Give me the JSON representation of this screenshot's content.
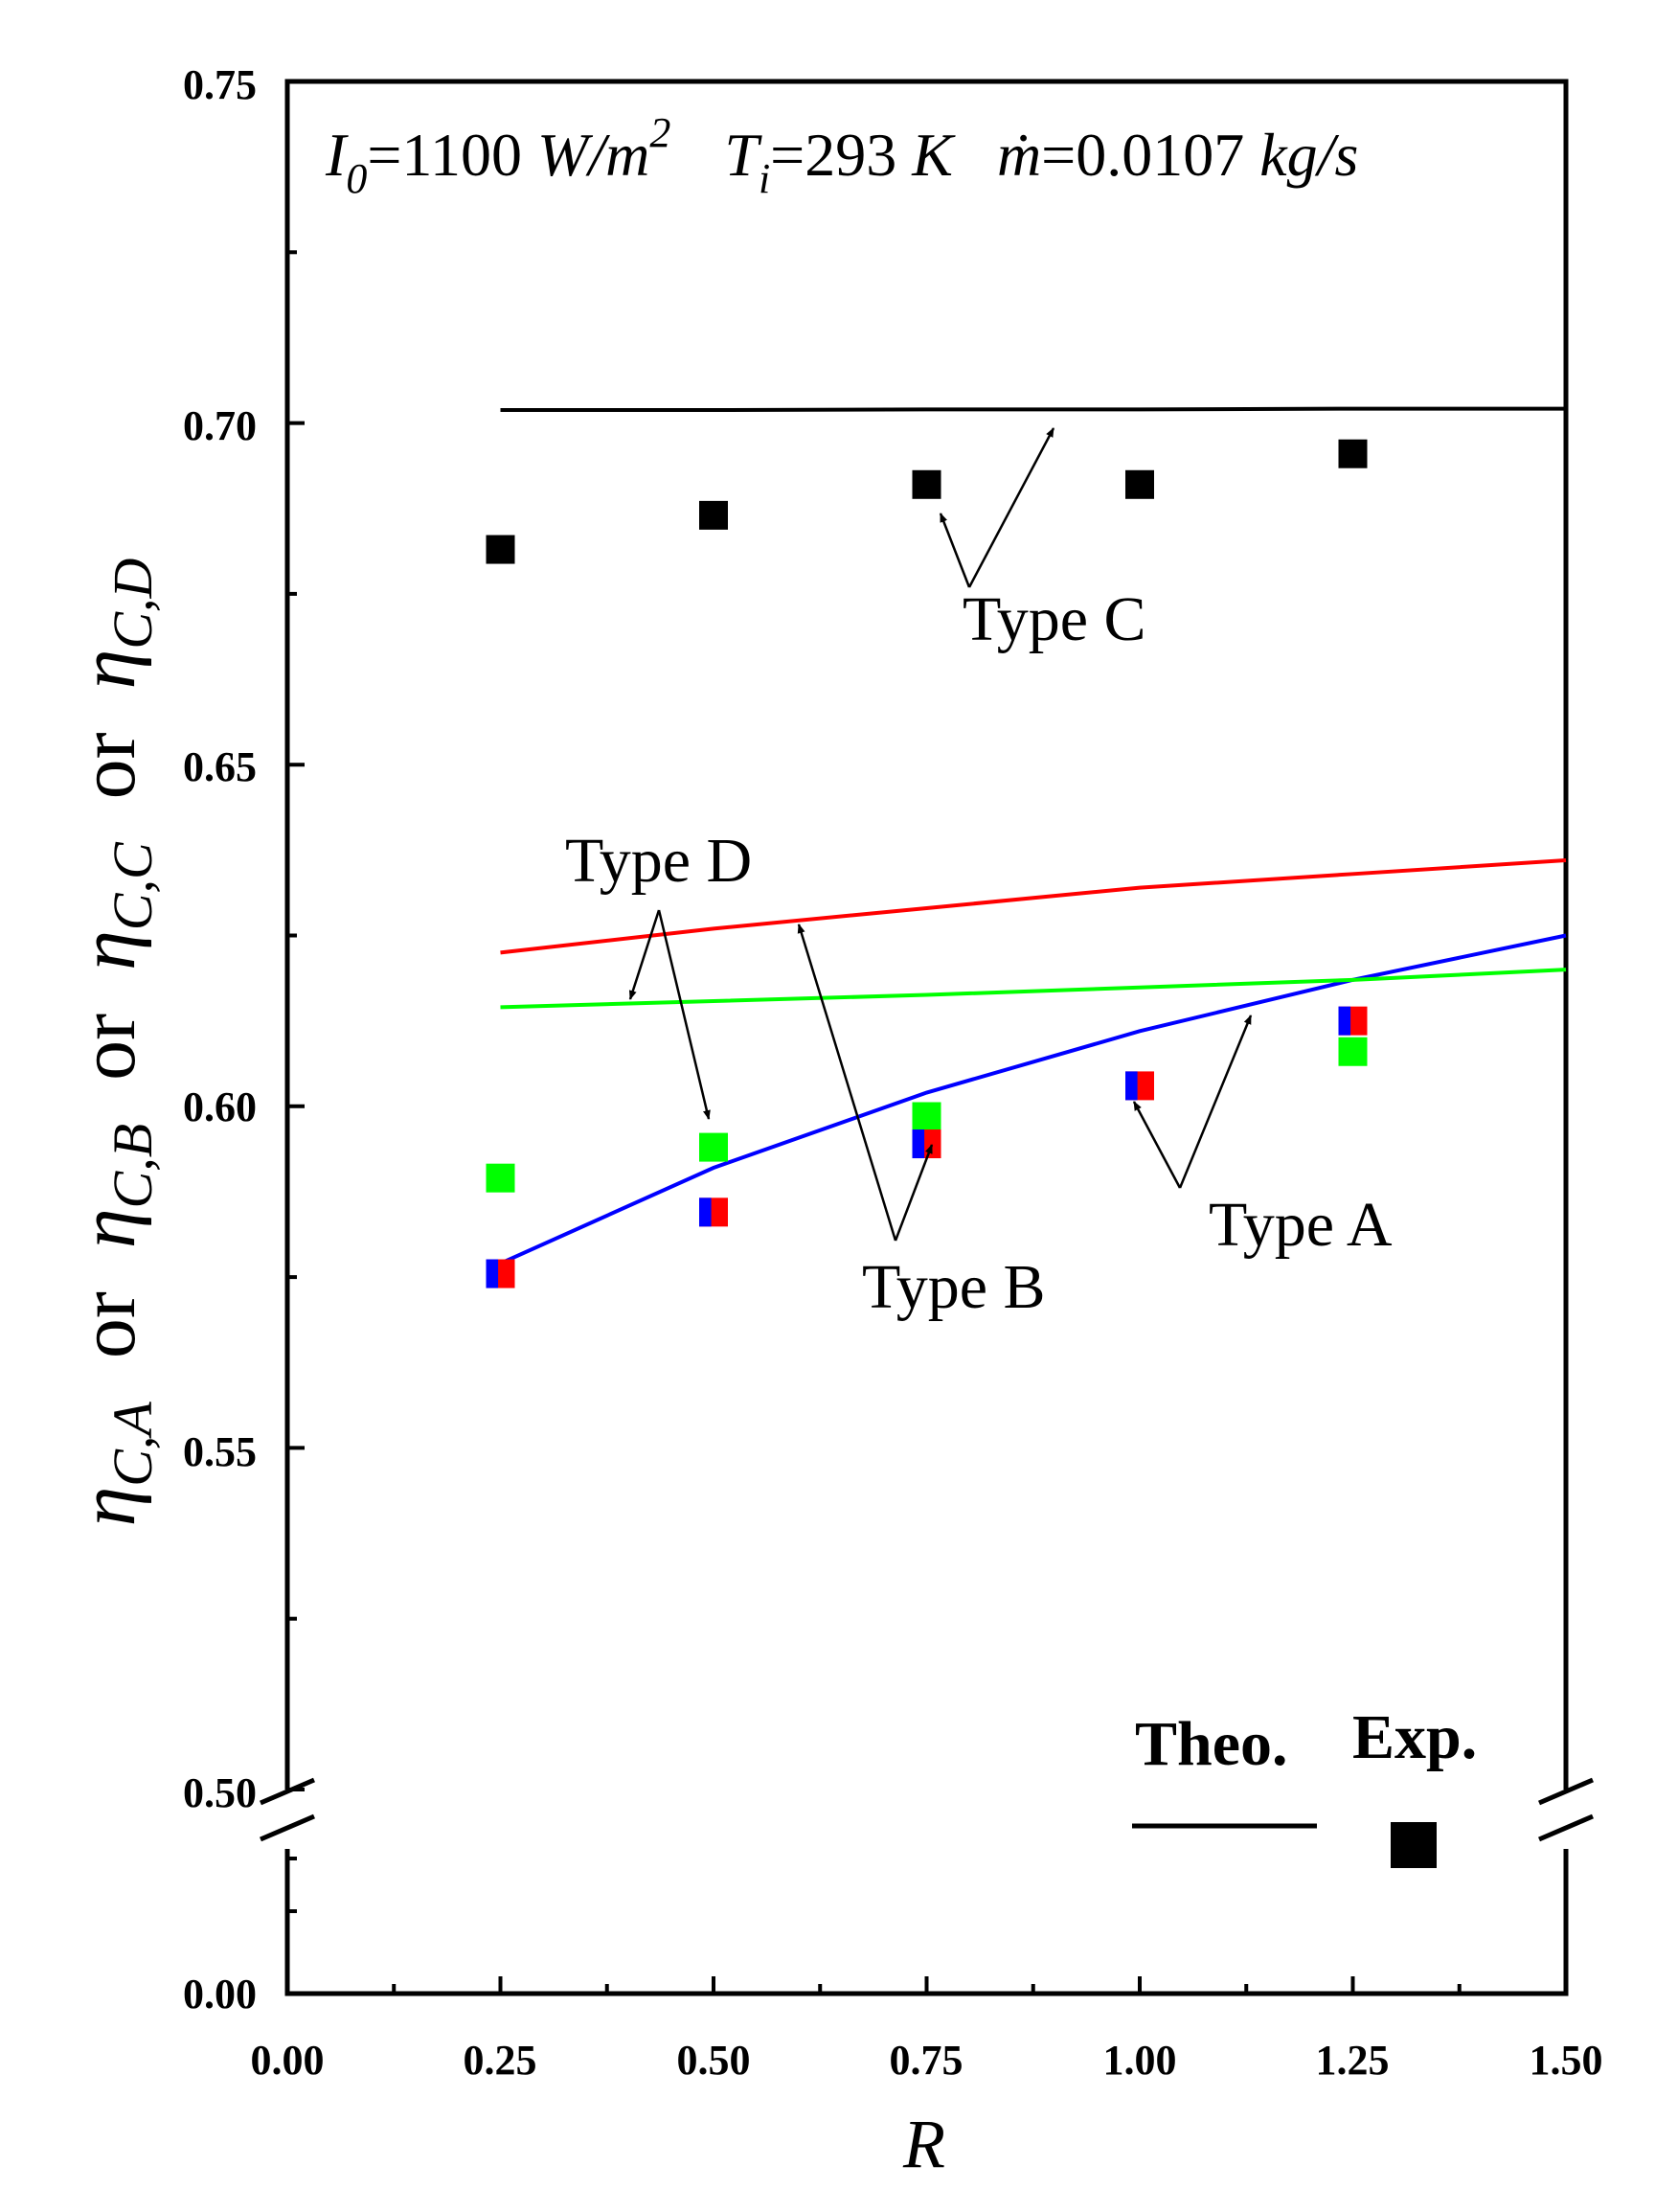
{
  "chart_data": {
    "type": "line+scatter",
    "xlabel": "R",
    "ylabel": {
      "eta": "η",
      "subs": [
        "C,A",
        "C,B",
        "C,C",
        "C,D"
      ],
      "joiner": "or"
    },
    "conditions": {
      "I0_sym": "I",
      "I0_sub": "0",
      "I0_val": "=1100 ",
      "I0_unit": "W/m",
      "I0_unit_sup": "2",
      "Ti_sym": "T",
      "Ti_sub": "i",
      "Ti_val": "=293 ",
      "Ti_unit": "K",
      "m_sym": "ṁ",
      "m_val": "=0.0107 ",
      "m_unit": "kg/s"
    },
    "x_ticks": [
      "0.00",
      "0.25",
      "0.50",
      "0.75",
      "1.00",
      "1.25",
      "1.50"
    ],
    "y_ticks_upper": [
      "0.50",
      "0.55",
      "0.60",
      "0.65",
      "0.70",
      "0.75"
    ],
    "y_tick_lower": "0.00",
    "xlim": [
      0,
      1.5
    ],
    "ylim_upper": [
      0.5,
      0.75
    ],
    "axis_break": "y-axis broken between 0.00 and 0.50",
    "theoretical": [
      {
        "name": "Type A",
        "color": "#0000ff",
        "x": [
          0.25,
          0.5,
          0.75,
          1.0,
          1.25,
          1.5
        ],
        "y": [
          0.577,
          0.591,
          0.602,
          0.611,
          0.6185,
          0.625
        ]
      },
      {
        "name": "Type B",
        "color": "#ff0000",
        "x": [
          0.25,
          0.5,
          0.75,
          1.0,
          1.25,
          1.5
        ],
        "y": [
          0.6225,
          0.626,
          0.629,
          0.632,
          0.634,
          0.636
        ]
      },
      {
        "name": "Type C",
        "color": "#000000",
        "x": [
          0.25,
          0.5,
          0.75,
          1.0,
          1.25,
          1.5
        ],
        "y": [
          0.7019,
          0.7019,
          0.702,
          0.702,
          0.7021,
          0.7021
        ]
      },
      {
        "name": "Type D",
        "color": "#00ff00",
        "x": [
          0.25,
          0.5,
          0.75,
          1.0,
          1.25,
          1.5
        ],
        "y": [
          0.6145,
          0.6154,
          0.6163,
          0.6174,
          0.6185,
          0.62
        ]
      }
    ],
    "experimental": [
      {
        "name": "Type A",
        "color": "#0000ff",
        "x": [
          0.25,
          0.5,
          0.75,
          1.0,
          1.25
        ],
        "y": [
          0.5755,
          0.5845,
          0.5945,
          0.603,
          0.6125
        ]
      },
      {
        "name": "Type B",
        "color": "#ff0000",
        "x": [
          0.25,
          0.5,
          0.75,
          1.0,
          1.25
        ],
        "y": [
          0.5755,
          0.5845,
          0.5945,
          0.603,
          0.6125
        ]
      },
      {
        "name": "Type C",
        "color": "#000000",
        "x": [
          0.25,
          0.5,
          0.75,
          1.0,
          1.25
        ],
        "y": [
          0.6815,
          0.6865,
          0.691,
          0.691,
          0.6955
        ]
      },
      {
        "name": "Type D",
        "color": "#00ff00",
        "x": [
          0.25,
          0.5,
          0.75,
          1.25
        ],
        "y": [
          0.5895,
          0.594,
          0.5985,
          0.608
        ]
      }
    ],
    "annotations": [
      {
        "text": "Type C",
        "arrows_to": [
          [
            0.75,
            0.691
          ],
          [
            0.9,
            0.7019
          ]
        ]
      },
      {
        "text": "Type D",
        "arrows_to": [
          [
            0.41,
            0.6155
          ],
          [
            0.5,
            0.597
          ]
        ]
      },
      {
        "text": "Type B",
        "arrows_to": [
          [
            0.75,
            0.5965
          ],
          [
            0.6,
            0.6265
          ]
        ]
      },
      {
        "text": "Type A",
        "arrows_to": [
          [
            1.0,
            0.6045
          ],
          [
            1.15,
            0.6135
          ]
        ]
      }
    ],
    "legend": {
      "theo_label": "Theo.",
      "exp_label": "Exp.",
      "placement": "bottom-right"
    }
  }
}
